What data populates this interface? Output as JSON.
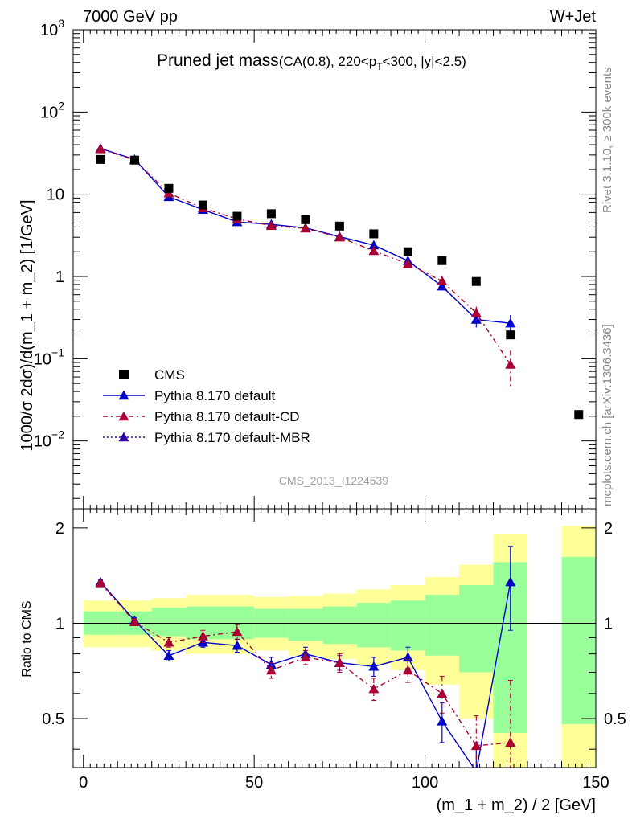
{
  "header": {
    "left": "7000 GeV pp",
    "right": "W+Jet"
  },
  "side_labels": {
    "rivet": "Rivet 3.1.10, ≥ 300k events",
    "mcplots": "mcplots.cern.ch [arXiv:1306.3436]"
  },
  "chart_data": {
    "type": "scatter",
    "title_main": "Pruned jet mass",
    "title_sub_a": "(CA(0.8), 220<p",
    "title_sub_b": "T",
    "title_sub_c": "<300, |y|<2.5)",
    "analysis_id": "CMS_2013_I1224539",
    "xlabel": "(m_1 + m_2) / 2 [GeV]",
    "ylabel": "1000/σ 2dσ)/d(m_1 + m_2) [1/GeV]",
    "ratio_ylabel": "Ratio to CMS",
    "xlim": [
      -3,
      150
    ],
    "ylim": [
      0.0015,
      1000
    ],
    "yscale": "log",
    "ratio_ylim": [
      0.35,
      2.3
    ],
    "ratio_yscale": "log",
    "x_ticks": [
      "0",
      "50",
      "100",
      "150"
    ],
    "y_ticks": [
      {
        "v": 1000,
        "base": "10",
        "exp": "3"
      },
      {
        "v": 100,
        "base": "10",
        "exp": "2"
      },
      {
        "v": 10,
        "base": "10",
        "exp": ""
      },
      {
        "v": 1,
        "base": "1",
        "exp": ""
      },
      {
        "v": 0.1,
        "base": "10",
        "exp": "−1"
      },
      {
        "v": 0.01,
        "base": "10",
        "exp": "−2"
      }
    ],
    "ratio_ticks": [
      {
        "v": 2,
        "label": "2"
      },
      {
        "v": 1,
        "label": "1"
      },
      {
        "v": 0.5,
        "label": "0.5"
      }
    ],
    "legend_position": "bottom-left",
    "data": {
      "name": "CMS",
      "color": "#000000",
      "x": [
        5,
        15,
        25,
        35,
        45,
        55,
        65,
        75,
        85,
        95,
        105,
        115,
        125,
        145
      ],
      "y": [
        26.5,
        26.0,
        11.8,
        7.4,
        5.4,
        5.8,
        4.9,
        4.1,
        3.3,
        2.0,
        1.56,
        0.87,
        0.195,
        0.021
      ]
    },
    "bands": [
      {
        "xlo": 0,
        "xhi": 10,
        "g": [
          0.92,
          1.09
        ],
        "y": [
          0.84,
          1.18
        ]
      },
      {
        "xlo": 10,
        "xhi": 20,
        "g": [
          0.92,
          1.09
        ],
        "y": [
          0.84,
          1.18
        ]
      },
      {
        "xlo": 20,
        "xhi": 30,
        "g": [
          0.91,
          1.12
        ],
        "y": [
          0.82,
          1.2
        ]
      },
      {
        "xlo": 30,
        "xhi": 40,
        "g": [
          0.89,
          1.13
        ],
        "y": [
          0.8,
          1.23
        ]
      },
      {
        "xlo": 40,
        "xhi": 50,
        "g": [
          0.89,
          1.13
        ],
        "y": [
          0.8,
          1.23
        ]
      },
      {
        "xlo": 50,
        "xhi": 60,
        "g": [
          0.9,
          1.11
        ],
        "y": [
          0.82,
          1.21
        ]
      },
      {
        "xlo": 60,
        "xhi": 70,
        "g": [
          0.88,
          1.11
        ],
        "y": [
          0.79,
          1.22
        ]
      },
      {
        "xlo": 70,
        "xhi": 80,
        "g": [
          0.86,
          1.13
        ],
        "y": [
          0.77,
          1.24
        ]
      },
      {
        "xlo": 80,
        "xhi": 90,
        "g": [
          0.84,
          1.16
        ],
        "y": [
          0.74,
          1.28
        ]
      },
      {
        "xlo": 90,
        "xhi": 100,
        "g": [
          0.82,
          1.18
        ],
        "y": [
          0.71,
          1.32
        ]
      },
      {
        "xlo": 100,
        "xhi": 110,
        "g": [
          0.79,
          1.23
        ],
        "y": [
          0.64,
          1.4
        ]
      },
      {
        "xlo": 110,
        "xhi": 120,
        "g": [
          0.7,
          1.32
        ],
        "y": [
          0.5,
          1.53
        ]
      },
      {
        "xlo": 120,
        "xhi": 130,
        "g": [
          0.45,
          1.56
        ],
        "y": [
          0.3,
          1.92
        ]
      },
      {
        "xlo": 140,
        "xhi": 150,
        "g": [
          0.48,
          1.62
        ],
        "y": [
          0.3,
          2.03
        ]
      }
    ],
    "series": [
      {
        "name": "Pythia 8.170 default",
        "color": "#0000cc",
        "dash": "",
        "x": [
          5,
          15,
          25,
          35,
          45,
          55,
          65,
          75,
          85,
          95,
          105,
          115,
          125
        ],
        "y": [
          36.0,
          26.5,
          9.3,
          6.5,
          4.6,
          4.3,
          3.9,
          3.05,
          2.4,
          1.55,
          0.76,
          0.3,
          0.27
        ],
        "yerr": [
          0.8,
          0.6,
          0.3,
          0.2,
          0.2,
          0.2,
          0.2,
          0.12,
          0.12,
          0.09,
          0.08,
          0.06,
          0.07
        ],
        "ratio": [
          1.35,
          1.02,
          0.79,
          0.87,
          0.85,
          0.74,
          0.8,
          0.75,
          0.73,
          0.78,
          0.49,
          0.34,
          1.35
        ],
        "ratio_err": [
          0.02,
          0.02,
          0.03,
          0.03,
          0.04,
          0.04,
          0.04,
          0.04,
          0.05,
          0.06,
          0.07,
          0.08,
          0.4
        ]
      },
      {
        "name": "Pythia 8.170 default-CD",
        "color": "#aa0033",
        "dash": "6,4,2,4",
        "x": [
          5,
          15,
          25,
          35,
          45,
          55,
          65,
          75,
          85,
          95,
          105,
          115,
          125
        ],
        "y": [
          35.5,
          26.0,
          10.3,
          6.8,
          5.0,
          4.15,
          3.85,
          3.0,
          2.05,
          1.42,
          0.88,
          0.36,
          0.085
        ],
        "yerr": [
          0.8,
          0.6,
          0.3,
          0.2,
          0.2,
          0.2,
          0.2,
          0.12,
          0.1,
          0.08,
          0.09,
          0.07,
          0.04
        ],
        "ratio": [
          1.34,
          1.01,
          0.87,
          0.91,
          0.94,
          0.71,
          0.78,
          0.75,
          0.62,
          0.71,
          0.6,
          0.41,
          0.42
        ],
        "ratio_err": [
          0.02,
          0.02,
          0.03,
          0.04,
          0.05,
          0.04,
          0.04,
          0.05,
          0.05,
          0.06,
          0.08,
          0.1,
          0.24
        ]
      },
      {
        "name": "Pythia 8.170 default-MBR",
        "color": "#3300aa",
        "dash": "2,3",
        "x": [],
        "y": [],
        "yerr": [],
        "ratio": [],
        "ratio_err": []
      }
    ]
  }
}
